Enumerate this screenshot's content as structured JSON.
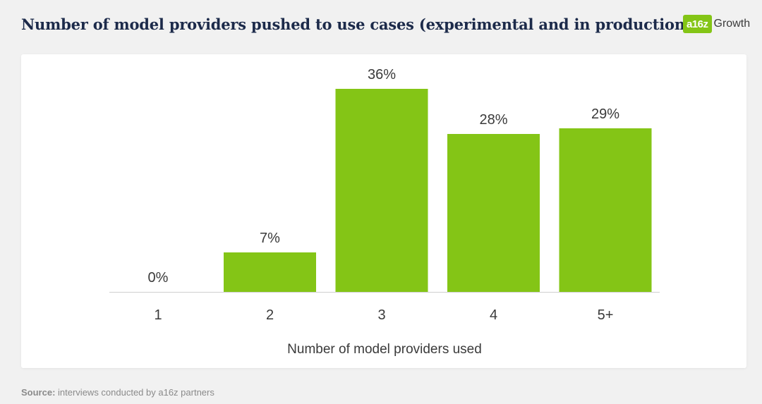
{
  "header": {
    "title": "Number of model providers pushed to use cases (experimental and in production)",
    "logo_badge": "a16z",
    "logo_text": "Growth"
  },
  "colors": {
    "bar": "#84c516",
    "axis": "#cfcfcf",
    "label": "#3a3a3a"
  },
  "footer": {
    "source_label": "Source:",
    "source_text": " interviews conducted by a16z partners"
  },
  "chart_data": {
    "type": "bar",
    "title": "Number of model providers pushed to use cases (experimental and in production)",
    "categories": [
      "1",
      "2",
      "3",
      "4",
      "5+"
    ],
    "values": [
      0,
      7,
      36,
      28,
      29
    ],
    "value_labels": [
      "0%",
      "7%",
      "36%",
      "28%",
      "29%"
    ],
    "xlabel": "Number of model providers used",
    "ylabel": "",
    "ylim": [
      0,
      36
    ],
    "grid": false,
    "legend": "none"
  }
}
